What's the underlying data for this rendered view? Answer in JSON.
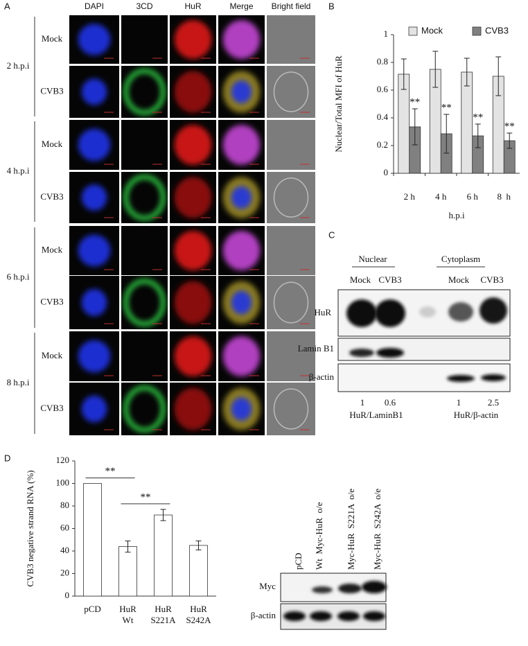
{
  "panel_a": {
    "label": "A",
    "columns": [
      "DAPI",
      "3CD",
      "HuR",
      "Merge",
      "Bright field"
    ],
    "groups": [
      {
        "time": "2 h.p.i",
        "rows": [
          "Mock",
          "CVB3"
        ]
      },
      {
        "time": "4 h.p.i",
        "rows": [
          "Mock",
          "CVB3"
        ]
      },
      {
        "time": "6 h.p.i",
        "rows": [
          "Mock",
          "CVB3"
        ]
      },
      {
        "time": "8 h.p.i",
        "rows": [
          "Mock",
          "CVB3"
        ]
      }
    ]
  },
  "chart_data": [
    {
      "type": "bar",
      "panel_label": "B",
      "ylabel": "Nuclear/Total MFI of HuR",
      "xlabel": "h.p.i",
      "categories": [
        "2 h",
        "4 h",
        "6 h",
        "8  h"
      ],
      "ylim": [
        0,
        1
      ],
      "yticks": [
        0,
        0.2,
        0.4,
        0.6,
        0.8,
        1
      ],
      "legend": "top",
      "series": [
        {
          "name": "Mock",
          "color": "#e3e3e3",
          "values": [
            0.715,
            0.75,
            0.73,
            0.7
          ],
          "errors": [
            0.11,
            0.13,
            0.1,
            0.14
          ]
        },
        {
          "name": "CVB3",
          "color": "#808080",
          "values": [
            0.335,
            0.285,
            0.27,
            0.235
          ],
          "errors": [
            0.13,
            0.14,
            0.085,
            0.055
          ],
          "annotations": [
            "**",
            "**",
            "**",
            "**"
          ]
        }
      ]
    },
    {
      "type": "bar",
      "panel_label": "D",
      "ylabel": "CVB3 negative strand RNA (%)",
      "categories": [
        [
          "pCD"
        ],
        [
          "HuR",
          "Wt"
        ],
        [
          "HuR",
          "S221A"
        ],
        [
          "HuR",
          "S242A"
        ]
      ],
      "ylim": [
        0,
        120
      ],
      "yticks": [
        0,
        20,
        40,
        60,
        80,
        100,
        120
      ],
      "color": "#ffffff",
      "values": [
        100,
        44,
        72,
        45
      ],
      "errors": [
        null,
        5,
        5,
        4
      ],
      "annotations": [
        {
          "text": "**",
          "from": 0,
          "to": 1
        },
        {
          "text": "**",
          "from": 1,
          "to": 2
        }
      ]
    }
  ],
  "panel_c": {
    "label": "C",
    "fractions": [
      "Nuclear",
      "Cytoplasm"
    ],
    "lanes": [
      "Mock",
      "CVB3",
      "Mock",
      "CVB3"
    ],
    "rows": [
      "HuR",
      "Lamin B1",
      "β-actin"
    ],
    "quantification": [
      1,
      0.6,
      1,
      2.5
    ],
    "ratios": [
      "HuR/LaminB1",
      "HuR/β-actin"
    ]
  },
  "panel_d_blot": {
    "lanes": [
      "pCD",
      "Wt  Myc-HuR  o/e",
      "Myc-HuR  S221A  o/e",
      "Myc-HuR  S242A  o/e"
    ],
    "rows": [
      "Myc",
      "β-actin"
    ]
  }
}
